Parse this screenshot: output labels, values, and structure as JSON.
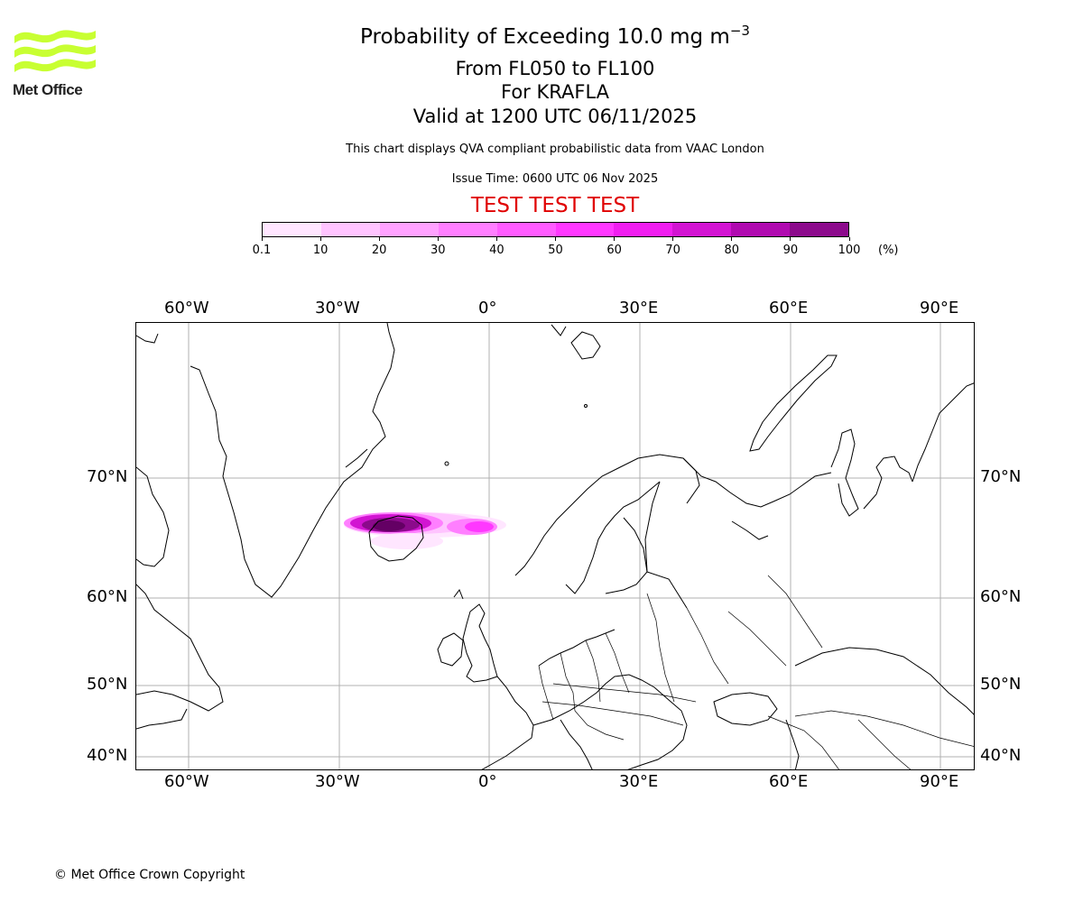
{
  "logo": {
    "text": "Met Office",
    "color": "#c8ff32"
  },
  "title": {
    "main": "Probability of Exceeding 10.0 mg m",
    "main_superscript": "−3",
    "levels": "From FL050 to FL100",
    "volcano": "For KRAFLA",
    "valid": "Valid at 1200 UTC 06/11/2025",
    "description": "This chart displays QVA compliant probabilistic data from VAAC London",
    "issue_time": "Issue Time: 0600 UTC 06 Nov 2025",
    "test_banner": "TEST TEST TEST"
  },
  "colorbar": {
    "colors": [
      "#ffe6ff",
      "#ffc4ff",
      "#ffa2ff",
      "#ff7fff",
      "#ff5cff",
      "#ff38ff",
      "#f01ef0",
      "#d214d2",
      "#b00ab0",
      "#8c0a8c",
      "#640064"
    ],
    "labels": [
      "0.1",
      "10",
      "20",
      "30",
      "40",
      "50",
      "60",
      "70",
      "80",
      "90",
      "100"
    ],
    "unit": "(%)"
  },
  "map": {
    "top_lon_labels": [
      "60°W",
      "30°W",
      "0°",
      "30°E",
      "60°E",
      "90°E"
    ],
    "bottom_lon_labels": [
      "60°W",
      "30°W",
      "0°",
      "30°E",
      "60°E",
      "90°E"
    ],
    "left_lat_labels": [
      "70°N",
      "60°N",
      "50°N",
      "40°N"
    ],
    "right_lat_labels": [
      "70°N",
      "60°N",
      "50°N",
      "40°N"
    ],
    "gridline_color": "#b0b0b0"
  },
  "footer": {
    "copyright": "© Met Office Crown Copyright"
  }
}
